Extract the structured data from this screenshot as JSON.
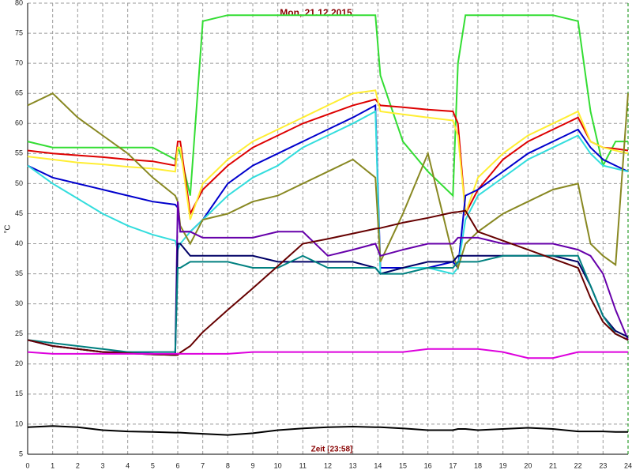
{
  "chart_data": {
    "type": "line",
    "title": "Mon, 21.12.2015",
    "x_label": "Zeit [23:58]",
    "y_label": "°C",
    "x": [
      0,
      1,
      2,
      3,
      4,
      5,
      5.9,
      6,
      6.1,
      6.5,
      7,
      8,
      9,
      10,
      11,
      12,
      13,
      13.9,
      14.1,
      15,
      16,
      17,
      17.2,
      17.5,
      18,
      19,
      20,
      21,
      22,
      22.5,
      23,
      23.5,
      24
    ],
    "series": [
      {
        "color": "#33dd33",
        "values": [
          57,
          56,
          56,
          56,
          56,
          56,
          54,
          56,
          55,
          48,
          77,
          78,
          78,
          78,
          78,
          78,
          78,
          78,
          68,
          57,
          52,
          48,
          70,
          78,
          78,
          78,
          78,
          78,
          77,
          62,
          53,
          57,
          57
        ]
      },
      {
        "color": "#dd0000",
        "values": [
          55.5,
          55,
          54.7,
          54.4,
          54,
          53.7,
          53,
          57,
          57,
          45,
          49,
          53,
          56,
          58,
          60,
          61.5,
          63,
          64,
          63,
          62.7,
          62.3,
          62,
          60,
          45,
          49,
          54,
          57,
          59,
          61,
          57,
          56,
          55.8,
          55.5
        ]
      },
      {
        "color": "#ffee33",
        "values": [
          54.5,
          54,
          53.5,
          53.2,
          52.8,
          52.5,
          52,
          56,
          56,
          44,
          50,
          54,
          57,
          59,
          61,
          63,
          65,
          65.5,
          62,
          61.5,
          61,
          60.5,
          58,
          45,
          51,
          55,
          58,
          60,
          62,
          57,
          56,
          55.5,
          55
        ]
      },
      {
        "color": "#0000cc",
        "values": [
          53,
          51,
          50,
          49,
          48,
          47,
          46.5,
          46,
          42,
          42,
          44,
          50,
          53,
          55,
          57,
          59,
          61,
          63,
          36,
          36,
          36,
          37,
          36,
          48,
          49,
          52,
          55,
          57,
          59,
          56,
          54,
          53,
          52
        ]
      },
      {
        "color": "#33dddd",
        "values": [
          53,
          50,
          47.5,
          45,
          43,
          41.5,
          40.5,
          39,
          40,
          42,
          44,
          48,
          51,
          53,
          56,
          58,
          60,
          62,
          35,
          36,
          36,
          35,
          36,
          44,
          48,
          51,
          54,
          56,
          58,
          55,
          53,
          52.5,
          52
        ]
      },
      {
        "color": "#888822",
        "values": [
          63,
          65,
          61,
          58,
          55,
          51,
          48,
          47,
          43,
          40,
          44,
          45,
          47,
          48,
          50,
          52,
          54,
          51,
          37,
          45,
          55,
          38,
          36,
          40,
          42,
          45,
          47,
          49,
          50,
          40,
          38,
          36.5,
          65
        ]
      },
      {
        "color": "#6600aa",
        "values": [
          24,
          23,
          22.5,
          22,
          22,
          21.7,
          21.5,
          47,
          42,
          42,
          41,
          41,
          41,
          42,
          42,
          38,
          39,
          40,
          38,
          39,
          40,
          40,
          41,
          41,
          41,
          40,
          40,
          40,
          39,
          38,
          35,
          29,
          24
        ]
      },
      {
        "color": "#000066",
        "values": [
          24,
          23,
          22.5,
          22,
          21.8,
          21.6,
          21.5,
          40,
          40,
          38,
          38,
          38,
          38,
          37,
          37,
          37,
          37,
          36,
          35,
          36,
          37,
          37,
          38,
          38,
          38,
          38,
          38,
          38,
          37,
          33,
          28,
          25.5,
          24.5
        ]
      },
      {
        "color": "#008080",
        "values": [
          24,
          23.5,
          23,
          22.5,
          22,
          22,
          22,
          36,
          36,
          37,
          37,
          37,
          36,
          36,
          38,
          36,
          36,
          36,
          35,
          35,
          36,
          36,
          37,
          37,
          37,
          38,
          38,
          38,
          38,
          33,
          28,
          25,
          24
        ]
      },
      {
        "color": "#660000",
        "values": [
          24,
          23,
          22.5,
          22,
          21.8,
          21.6,
          21.5,
          21.5,
          21.9,
          23,
          25.3,
          29,
          32.6,
          36.3,
          40,
          40.8,
          41.7,
          42.5,
          42.6,
          43.5,
          44.3,
          45.2,
          45.3,
          45.5,
          42,
          40.5,
          39,
          37.5,
          36,
          31,
          27,
          25,
          24
        ]
      },
      {
        "color": "#dd00dd",
        "values": [
          22,
          21.7,
          21.7,
          21.7,
          21.7,
          21.7,
          21.7,
          21.7,
          21.7,
          21.7,
          21.7,
          21.7,
          22,
          22,
          22,
          22,
          22,
          22,
          22,
          22,
          22.5,
          22.5,
          22.5,
          22.5,
          22.5,
          22,
          21,
          21,
          22,
          22,
          22,
          22,
          22
        ]
      },
      {
        "color": "#000000",
        "values": [
          9.5,
          9.7,
          9.5,
          9,
          8.8,
          8.7,
          8.6,
          8.6,
          8.6,
          8.5,
          8.4,
          8.2,
          8.5,
          9,
          9.3,
          9.5,
          9.6,
          9.5,
          9.5,
          9.3,
          9,
          9,
          9.2,
          9.2,
          9,
          9.2,
          9.4,
          9.2,
          8.8,
          8.8,
          8.8,
          8.7,
          8.7
        ]
      }
    ],
    "xlim": [
      0,
      24
    ],
    "xticks": [
      0,
      1,
      2,
      3,
      4,
      5,
      6,
      7,
      8,
      9,
      10,
      11,
      12,
      13,
      14,
      15,
      16,
      17,
      18,
      19,
      20,
      21,
      22,
      23,
      24
    ],
    "ylim": [
      5,
      80
    ],
    "yticks": [
      5,
      10,
      15,
      20,
      25,
      30,
      35,
      40,
      45,
      50,
      55,
      60,
      65,
      70,
      75,
      80
    ],
    "grid": true
  }
}
